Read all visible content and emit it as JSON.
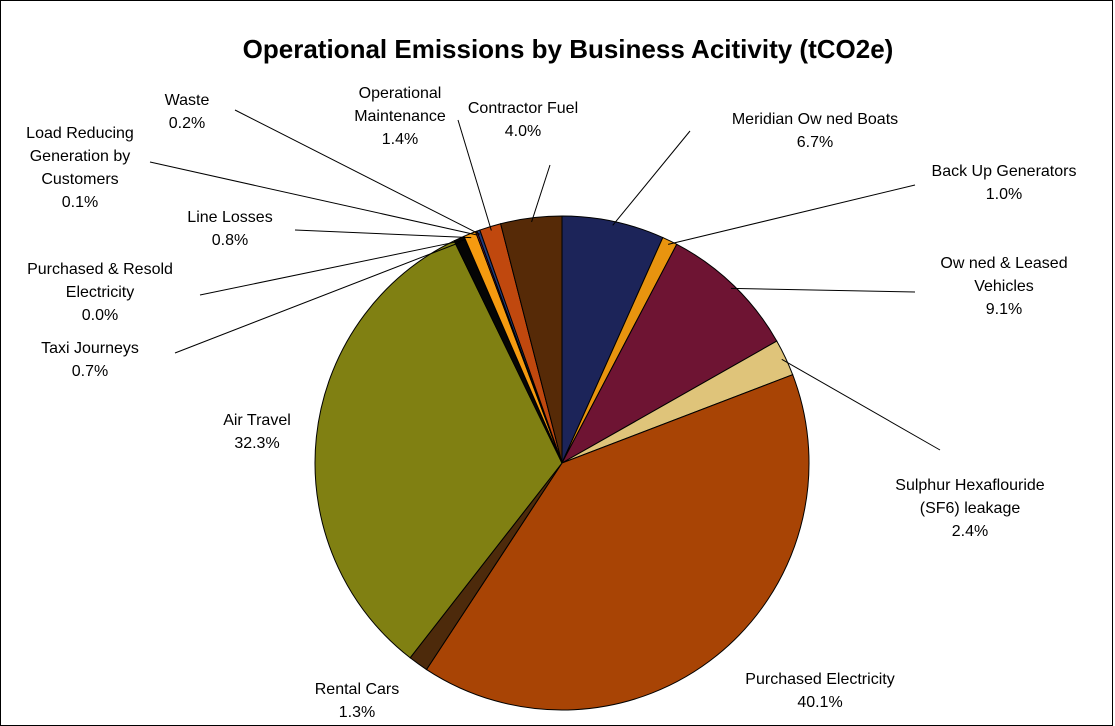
{
  "chart_data": {
    "type": "pie",
    "title": "Operational Emissions by Business Acitivity (tCO2e)",
    "slices": [
      {
        "name": "Meridian Ow ned Boats",
        "value": 6.7,
        "label_lines": [
          "Meridian Ow ned Boats",
          "6.7%"
        ],
        "color": "#1c2459"
      },
      {
        "name": "Back Up Generators",
        "value": 1.0,
        "label_lines": [
          "Back Up Generators",
          "1.0%"
        ],
        "color": "#e8940f"
      },
      {
        "name": "Ow ned & Leased Vehicles",
        "value": 9.1,
        "label_lines": [
          "Ow ned & Leased",
          "Vehicles",
          "9.1%"
        ],
        "color": "#6e1433"
      },
      {
        "name": "Sulphur Hexaflouride (SF6) leakage",
        "value": 2.4,
        "label_lines": [
          "Sulphur Hexaflouride",
          "(SF6) leakage",
          "2.4%"
        ],
        "color": "#dfc47a"
      },
      {
        "name": "Purchased Electricity",
        "value": 40.1,
        "label_lines": [
          "Purchased Electricity",
          "40.1%"
        ],
        "color": "#a84405"
      },
      {
        "name": "Rental Cars",
        "value": 1.3,
        "label_lines": [
          "Rental Cars",
          "1.3%"
        ],
        "color": "#4d2a0b"
      },
      {
        "name": "Air Travel",
        "value": 32.3,
        "label_lines": [
          "Air Travel",
          "32.3%"
        ],
        "color": "#808012"
      },
      {
        "name": "Taxi Journeys",
        "value": 0.7,
        "label_lines": [
          "Taxi Journeys",
          "0.7%"
        ],
        "color": "#050505"
      },
      {
        "name": "Purchased & Resold Electricity",
        "value": 0.0,
        "label_lines": [
          "Purchased & Resold",
          "Electricity",
          "0.0%"
        ],
        "color": "#f0f0f0"
      },
      {
        "name": "Line Losses",
        "value": 0.8,
        "label_lines": [
          "Line Losses",
          "0.8%"
        ],
        "color": "#f59a10"
      },
      {
        "name": "Load Reducing Generation by Customers",
        "value": 0.1,
        "label_lines": [
          "Load Reducing",
          "Generation by",
          "Customers",
          "0.1%"
        ],
        "color": "#9b1b4a"
      },
      {
        "name": "Waste",
        "value": 0.2,
        "label_lines": [
          "Waste",
          "0.2%"
        ],
        "color": "#203a7a"
      },
      {
        "name": "Operational Maintenance",
        "value": 1.4,
        "label_lines": [
          "Operational",
          "Maintenance",
          "1.4%"
        ],
        "color": "#c0480e"
      },
      {
        "name": "Contractor Fuel",
        "value": 4.0,
        "label_lines": [
          "Contractor Fuel",
          "4.0%"
        ],
        "color": "#562a07"
      }
    ],
    "legend": "none"
  }
}
